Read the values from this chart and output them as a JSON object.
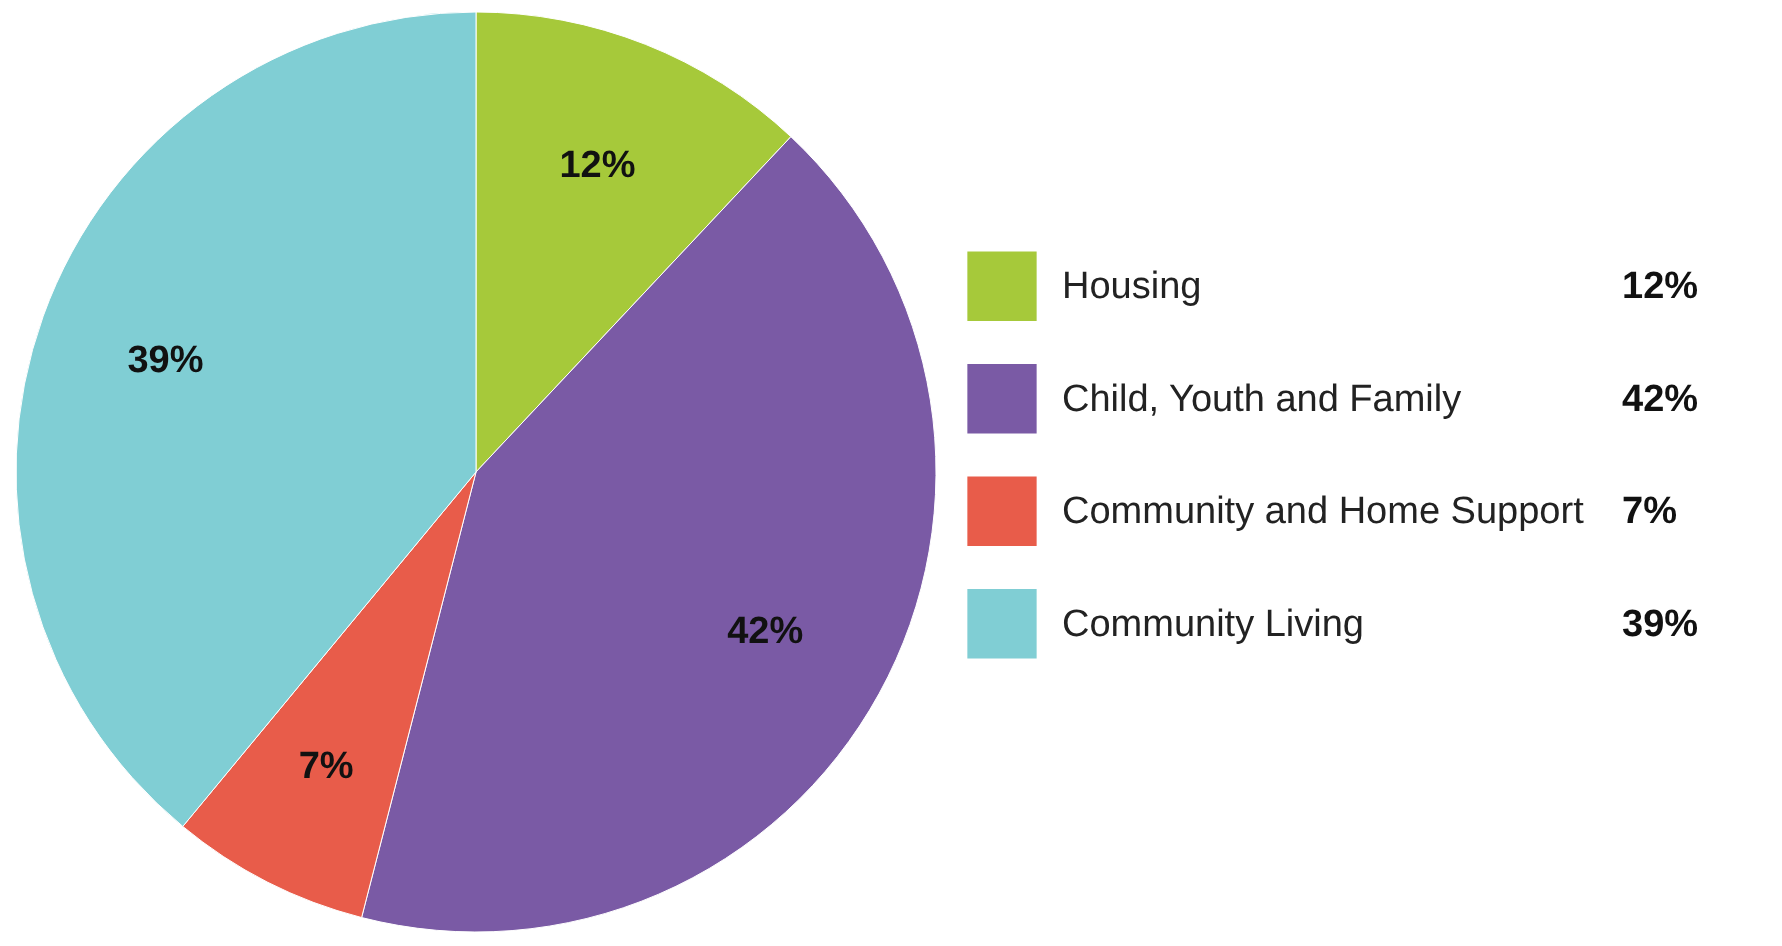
{
  "chart_data": {
    "type": "pie",
    "categories": [
      "Housing",
      "Child, Youth and Family",
      "Community and Home Support",
      "Community Living"
    ],
    "values": [
      12,
      42,
      7,
      39
    ],
    "colors": [
      "#a6c93a",
      "#7a5aa5",
      "#e85c4a",
      "#80ced4"
    ],
    "value_labels": [
      "12%",
      "42%",
      "7%",
      "39%"
    ],
    "legend": "right"
  }
}
